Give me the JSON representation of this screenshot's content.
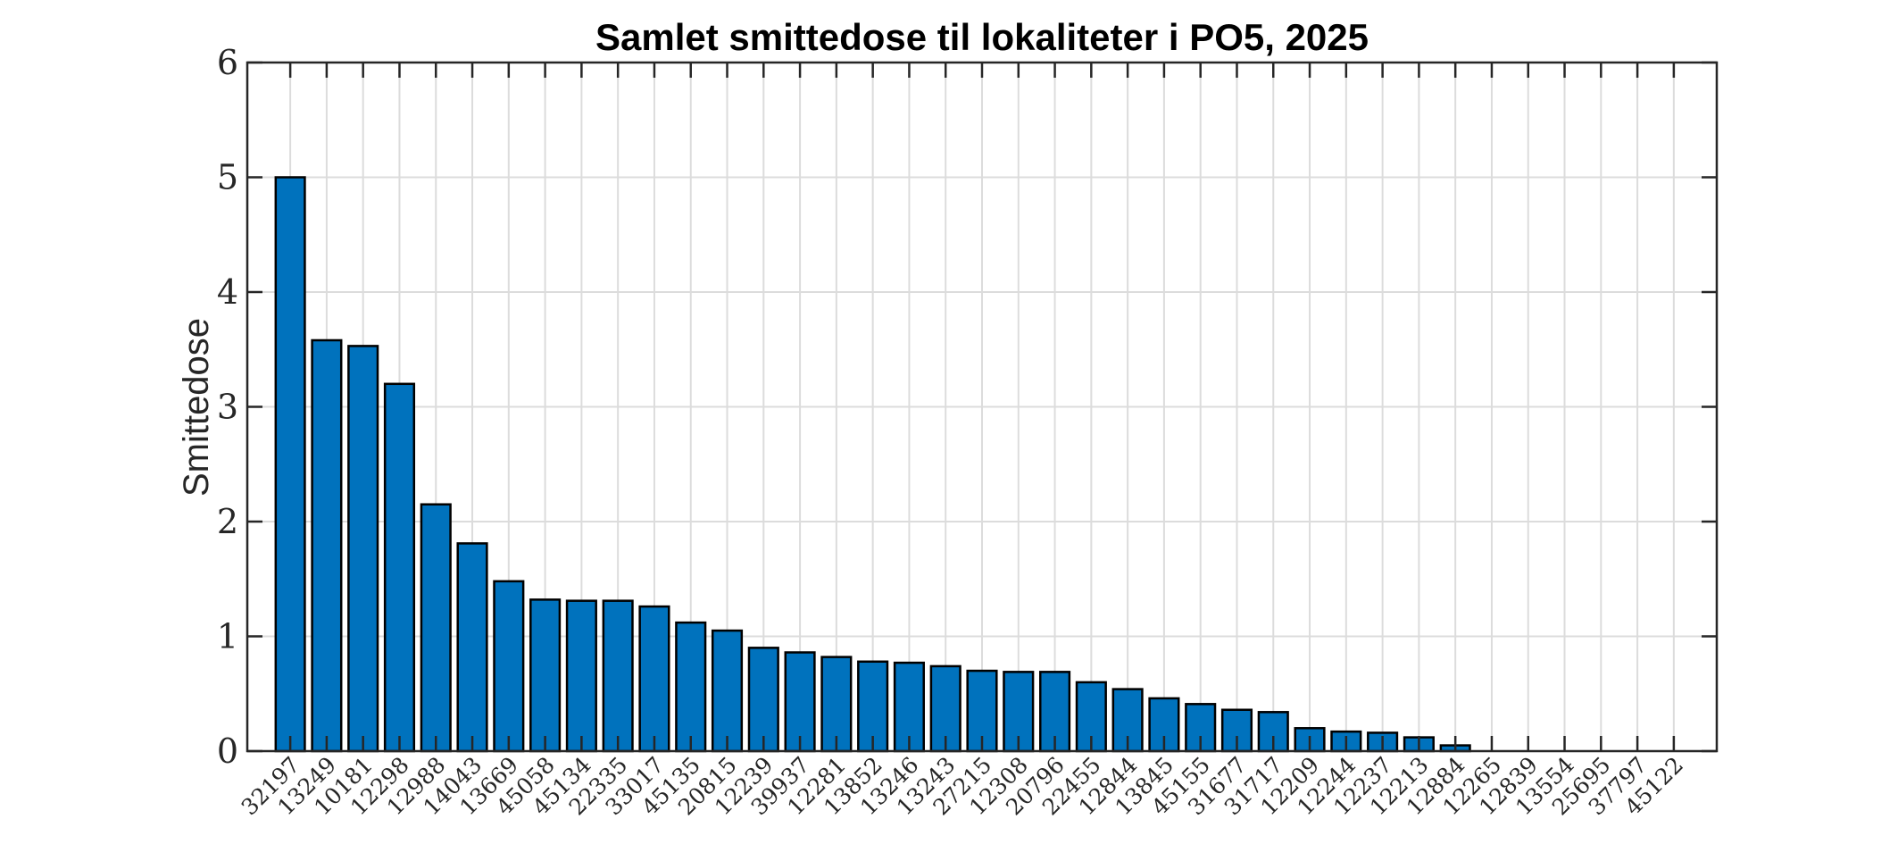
{
  "chart_data": {
    "type": "bar",
    "title": "Samlet smittedose til lokaliteter i PO5, 2025",
    "xlabel": "",
    "ylabel": "Smittedose",
    "ylim": [
      0,
      6
    ],
    "yticks": [
      0,
      1,
      2,
      3,
      4,
      5,
      6
    ],
    "grid": true,
    "bar_color": "#0072BD",
    "categories": [
      "32197",
      "13249",
      "10181",
      "12298",
      "12988",
      "14043",
      "13669",
      "45058",
      "45134",
      "22335",
      "33017",
      "45135",
      "20815",
      "12239",
      "39937",
      "12281",
      "13852",
      "13246",
      "13243",
      "27215",
      "12308",
      "20796",
      "22455",
      "12844",
      "13845",
      "45155",
      "31677",
      "31717",
      "12209",
      "12244",
      "12237",
      "12213",
      "12884",
      "12265",
      "12839",
      "13554",
      "25695",
      "37797",
      "45122"
    ],
    "values": [
      5.0,
      3.58,
      3.53,
      3.2,
      2.15,
      1.81,
      1.48,
      1.32,
      1.31,
      1.31,
      1.26,
      1.12,
      1.05,
      0.9,
      0.86,
      0.82,
      0.78,
      0.77,
      0.74,
      0.7,
      0.69,
      0.69,
      0.6,
      0.54,
      0.46,
      0.41,
      0.36,
      0.34,
      0.2,
      0.17,
      0.16,
      0.12,
      0.05,
      0,
      0,
      0,
      0,
      0,
      0
    ],
    "xtick_rotation": 45
  }
}
